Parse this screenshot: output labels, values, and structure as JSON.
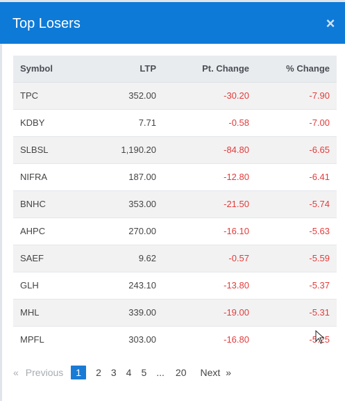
{
  "modal": {
    "title": "Top Losers",
    "close_glyph": "×"
  },
  "table": {
    "headers": [
      "Symbol",
      "LTP",
      "Pt. Change",
      "% Change"
    ],
    "rows": [
      [
        "TPC",
        "352.00",
        "-30.20",
        "-7.90"
      ],
      [
        "KDBY",
        "7.71",
        "-0.58",
        "-7.00"
      ],
      [
        "SLBSL",
        "1,190.20",
        "-84.80",
        "-6.65"
      ],
      [
        "NIFRA",
        "187.00",
        "-12.80",
        "-6.41"
      ],
      [
        "BNHC",
        "353.00",
        "-21.50",
        "-5.74"
      ],
      [
        "AHPC",
        "270.00",
        "-16.10",
        "-5.63"
      ],
      [
        "SAEF",
        "9.62",
        "-0.57",
        "-5.59"
      ],
      [
        "GLH",
        "243.10",
        "-13.80",
        "-5.37"
      ],
      [
        "MHL",
        "339.00",
        "-19.00",
        "-5.31"
      ],
      [
        "MPFL",
        "303.00",
        "-16.80",
        "-5.25"
      ]
    ]
  },
  "pagination": {
    "prev_arrow": "«",
    "previous": "Previous",
    "pages": [
      "1",
      "2",
      "3",
      "4",
      "5"
    ],
    "ellipsis": "...",
    "last": "20",
    "next": "Next",
    "next_arrow": "»",
    "active_page": "1"
  },
  "colors": {
    "header_bg": "#0d7ad8",
    "negative": "#e23b3b",
    "active_page": "#1a7bd6"
  }
}
